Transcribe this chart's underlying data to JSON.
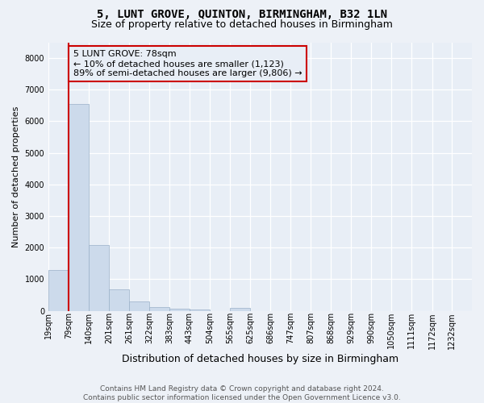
{
  "title": "5, LUNT GROVE, QUINTON, BIRMINGHAM, B32 1LN",
  "subtitle": "Size of property relative to detached houses in Birmingham",
  "xlabel": "Distribution of detached houses by size in Birmingham",
  "ylabel": "Number of detached properties",
  "bar_color": "#ccdaeb",
  "bar_edge_color": "#9ab0c8",
  "annotation_box_edgecolor": "#cc0000",
  "annotation_line_color": "#cc0000",
  "annotation_text": "5 LUNT GROVE: 78sqm\n← 10% of detached houses are smaller (1,123)\n89% of semi-detached houses are larger (9,806) →",
  "categories": [
    "19sqm",
    "79sqm",
    "140sqm",
    "201sqm",
    "261sqm",
    "322sqm",
    "383sqm",
    "443sqm",
    "504sqm",
    "565sqm",
    "625sqm",
    "686sqm",
    "747sqm",
    "807sqm",
    "868sqm",
    "929sqm",
    "990sqm",
    "1050sqm",
    "1111sqm",
    "1172sqm",
    "1232sqm"
  ],
  "values": [
    1280,
    6550,
    2080,
    680,
    295,
    130,
    75,
    50,
    0,
    100,
    0,
    0,
    0,
    0,
    0,
    0,
    0,
    0,
    0,
    0,
    0
  ],
  "bin_starts": [
    19,
    79,
    140,
    201,
    261,
    322,
    383,
    443,
    504,
    565,
    625,
    686,
    747,
    807,
    868,
    929,
    990,
    1050,
    1111,
    1172,
    1232
  ],
  "ylim": [
    0,
    8500
  ],
  "yticks": [
    0,
    1000,
    2000,
    3000,
    4000,
    5000,
    6000,
    7000,
    8000
  ],
  "background_color": "#edf1f7",
  "plot_bg_color": "#e8eef6",
  "grid_color": "#ffffff",
  "title_fontsize": 10,
  "subtitle_fontsize": 9,
  "xlabel_fontsize": 9,
  "ylabel_fontsize": 8,
  "tick_fontsize": 7,
  "annot_fontsize": 8,
  "footer_fontsize": 6.5,
  "footer_text": "Contains HM Land Registry data © Crown copyright and database right 2024.\nContains public sector information licensed under the Open Government Licence v3.0."
}
